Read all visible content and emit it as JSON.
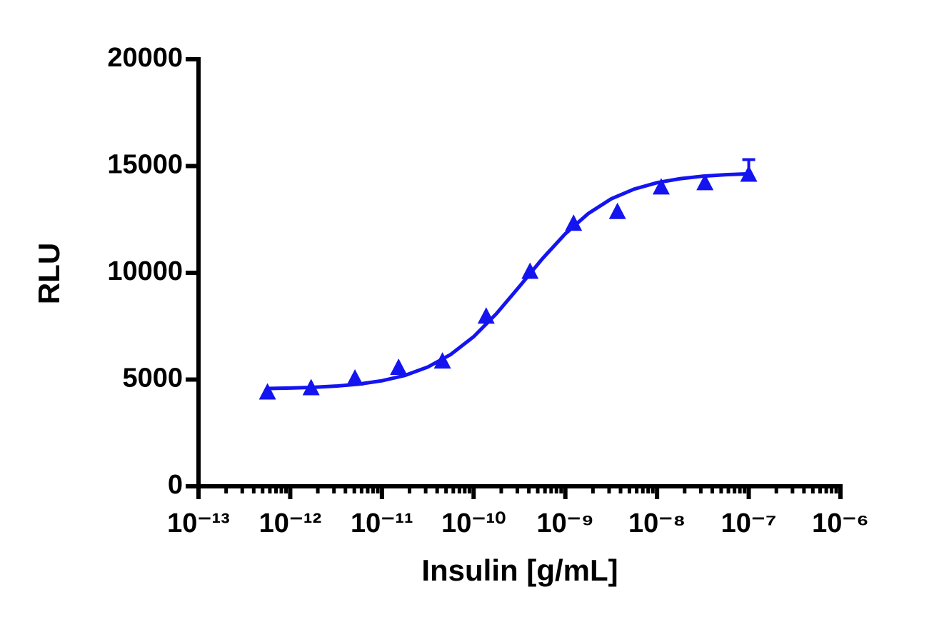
{
  "chart_data": {
    "type": "scatter",
    "x_label": "Insulin [g/mL]",
    "y_label": "RLU",
    "x_scale": "log",
    "minor_ticks": true,
    "xlim": [
      1e-13,
      1e-06
    ],
    "ylim": [
      0,
      20000
    ],
    "xticks": [
      {
        "value": 1e-13,
        "label": "10⁻¹³"
      },
      {
        "value": 1e-12,
        "label": "10⁻¹²"
      },
      {
        "value": 1e-11,
        "label": "10⁻¹¹"
      },
      {
        "value": 1e-10,
        "label": "10⁻¹⁰"
      },
      {
        "value": 1e-09,
        "label": "10⁻⁹"
      },
      {
        "value": 1e-08,
        "label": "10⁻⁸"
      },
      {
        "value": 1e-07,
        "label": "10⁻⁷"
      },
      {
        "value": 1e-06,
        "label": "10⁻⁶"
      }
    ],
    "yticks": [
      0,
      5000,
      10000,
      15000,
      20000
    ],
    "series": [
      {
        "color": "#1414f0",
        "marker": "triangle",
        "x": [
          5.65e-13,
          1.69e-12,
          5.08e-12,
          1.52e-11,
          4.57e-11,
          1.37e-10,
          4.12e-10,
          1.23e-09,
          3.7e-09,
          1.11e-08,
          3.33e-08,
          1e-07
        ],
        "values": [
          4400,
          4600,
          5050,
          5550,
          5850,
          7950,
          10050,
          12300,
          12850,
          14000,
          14200,
          14600
        ],
        "errors": [
          null,
          null,
          null,
          null,
          null,
          null,
          null,
          null,
          null,
          null,
          null,
          700
        ]
      },
      {
        "color": "#1414f0",
        "kind": "fit-line",
        "x": [
          5.62e-13,
          1e-12,
          1.78e-12,
          3.16e-12,
          5.62e-12,
          1e-11,
          1.78e-11,
          3.16e-11,
          5.62e-11,
          1e-10,
          1.78e-10,
          3.16e-10,
          5.62e-10,
          1e-09,
          1.78e-09,
          3.16e-09,
          5.62e-09,
          1e-08,
          1.78e-08,
          3.16e-08,
          5.62e-08,
          1e-07
        ],
        "values": [
          4581,
          4601,
          4635,
          4693,
          4788,
          4943,
          5192,
          5585,
          6174,
          7007,
          8095,
          9361,
          10660,
          11828,
          12775,
          13462,
          13919,
          14220,
          14406,
          14525,
          14595,
          14637
        ]
      }
    ]
  }
}
